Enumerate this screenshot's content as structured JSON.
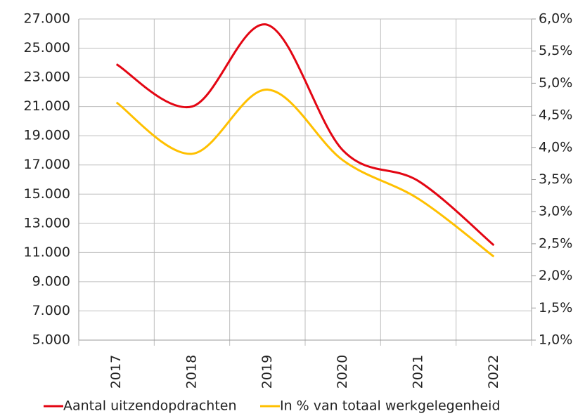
{
  "chart_data": {
    "type": "line",
    "categories": [
      "2017",
      "2018",
      "2019",
      "2020",
      "2021",
      "2022"
    ],
    "series": [
      {
        "name": "Aantal uitzendopdrachten",
        "color": "#e30613",
        "values": [
          23900,
          21000,
          26600,
          18000,
          15900,
          11500
        ]
      },
      {
        "name": "In % van totaal werkgelegenheid",
        "color": "#ffc000",
        "axis": "y2",
        "values": [
          4.7,
          3.9,
          4.9,
          3.8,
          3.2,
          2.3
        ]
      }
    ],
    "ylim": [
      5000,
      27000
    ],
    "yticks": [
      {
        "value": 5000,
        "label": "5.000"
      },
      {
        "value": 7000,
        "label": "7.000"
      },
      {
        "value": 9000,
        "label": "9.000"
      },
      {
        "value": 11000,
        "label": "11.000"
      },
      {
        "value": 13000,
        "label": "13.000"
      },
      {
        "value": 15000,
        "label": "15.000"
      },
      {
        "value": 17000,
        "label": "17.000"
      },
      {
        "value": 19000,
        "label": "19.000"
      },
      {
        "value": 21000,
        "label": "21.000"
      },
      {
        "value": 23000,
        "label": "23.000"
      },
      {
        "value": 25000,
        "label": "25.000"
      },
      {
        "value": 27000,
        "label": "27.000"
      }
    ],
    "y2lim": [
      1.0,
      6.0
    ],
    "y2ticks": [
      {
        "value": 1.0,
        "label": "1,0%"
      },
      {
        "value": 1.5,
        "label": "1,5%"
      },
      {
        "value": 2.0,
        "label": "2,0%"
      },
      {
        "value": 2.5,
        "label": "2,5%"
      },
      {
        "value": 3.0,
        "label": "3,0%"
      },
      {
        "value": 3.5,
        "label": "3,5%"
      },
      {
        "value": 4.0,
        "label": "4,0%"
      },
      {
        "value": 4.5,
        "label": "4,5%"
      },
      {
        "value": 5.0,
        "label": "5,0%"
      },
      {
        "value": 5.5,
        "label": "5,5%"
      },
      {
        "value": 6.0,
        "label": "6,0%"
      }
    ],
    "grid": true,
    "smooth": true,
    "legend": "bottom"
  }
}
